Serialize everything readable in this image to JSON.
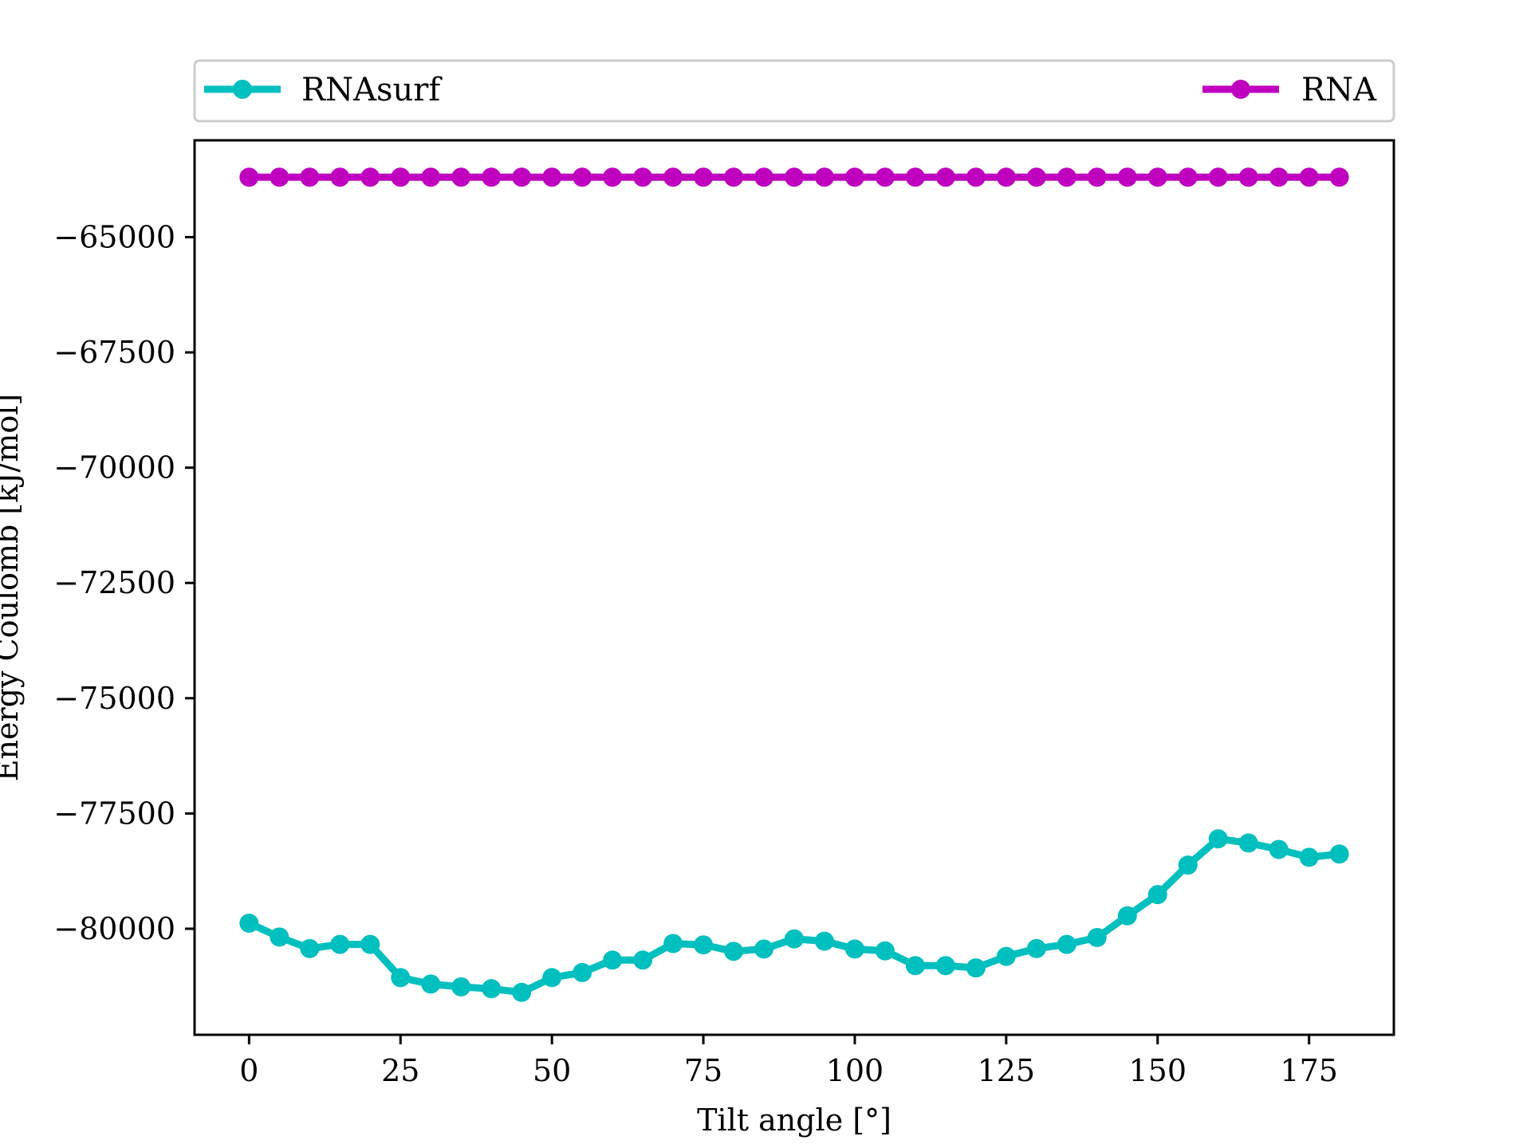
{
  "chart_data": {
    "type": "line",
    "title": "",
    "xlabel": "Tilt angle [°]",
    "ylabel": "Energy Coulomb [kJ/mol]",
    "xlim": [
      -9,
      189
    ],
    "ylim": [
      -82300,
      -62900
    ],
    "xticks": [
      0,
      25,
      50,
      75,
      100,
      125,
      150,
      175
    ],
    "xtick_labels": [
      "0",
      "25",
      "50",
      "75",
      "100",
      "125",
      "150",
      "175"
    ],
    "yticks": [
      -65000,
      -67500,
      -70000,
      -72500,
      -75000,
      -77500,
      -80000
    ],
    "ytick_labels": [
      "−65000",
      "−67500",
      "−70000",
      "−72500",
      "−75000",
      "−77500",
      "−80000"
    ],
    "grid": false,
    "legend": {
      "placement": "top",
      "columns": 2
    },
    "x": [
      0,
      5,
      10,
      15,
      20,
      25,
      30,
      35,
      40,
      45,
      50,
      55,
      60,
      65,
      70,
      75,
      80,
      85,
      90,
      95,
      100,
      105,
      110,
      115,
      120,
      125,
      130,
      135,
      140,
      145,
      150,
      155,
      160,
      165,
      170,
      175,
      180
    ],
    "series": [
      {
        "name": "RNAsurf",
        "color": "#00bfbf",
        "values": [
          -79880,
          -80180,
          -80430,
          -80340,
          -80340,
          -81060,
          -81200,
          -81260,
          -81300,
          -81380,
          -81060,
          -80950,
          -80680,
          -80680,
          -80320,
          -80350,
          -80490,
          -80440,
          -80220,
          -80270,
          -80440,
          -80480,
          -80800,
          -80800,
          -80850,
          -80600,
          -80430,
          -80340,
          -80190,
          -79720,
          -79260,
          -78620,
          -78050,
          -78140,
          -78280,
          -78450,
          -78380
        ]
      },
      {
        "name": "RNA",
        "color": "#bf00bf",
        "values": [
          -63700,
          -63700,
          -63700,
          -63700,
          -63700,
          -63700,
          -63700,
          -63700,
          -63700,
          -63700,
          -63700,
          -63700,
          -63700,
          -63700,
          -63700,
          -63700,
          -63700,
          -63700,
          -63700,
          -63700,
          -63700,
          -63700,
          -63700,
          -63700,
          -63700,
          -63700,
          -63700,
          -63700,
          -63700,
          -63700,
          -63700,
          -63700,
          -63700,
          -63700,
          -63700,
          -63700,
          -63700
        ]
      }
    ]
  }
}
